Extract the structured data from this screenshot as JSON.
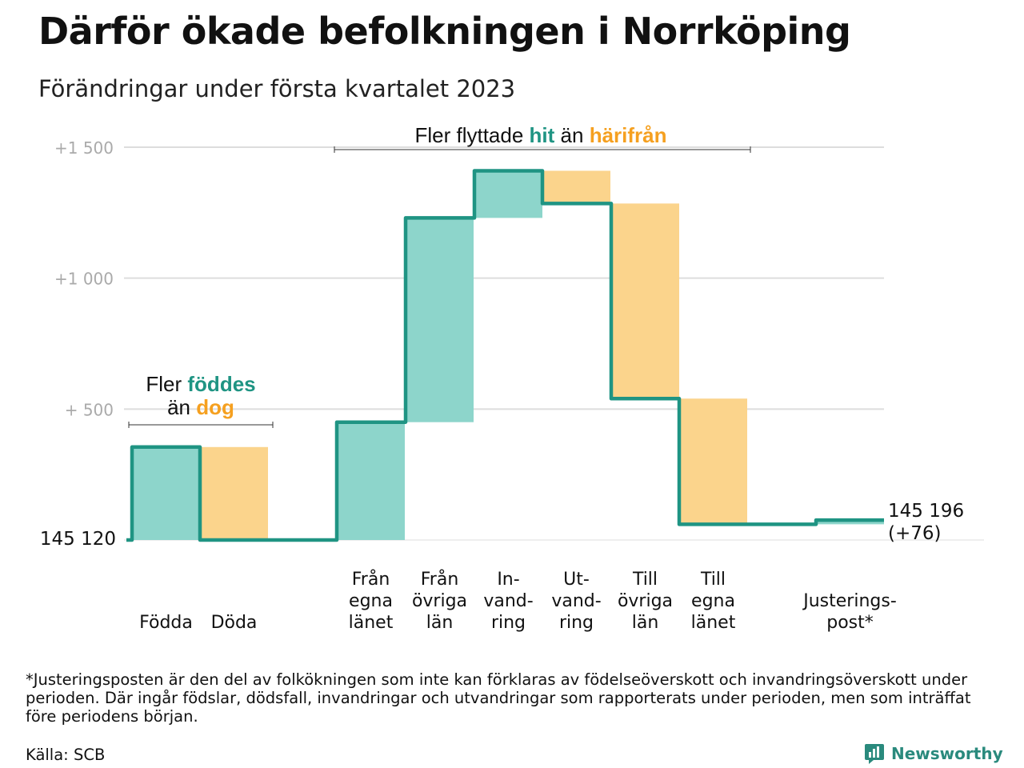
{
  "header": {
    "title": "Därför ökade befolkningen i Norrköping",
    "subtitle": "Förändringar under första kvartalet 2023"
  },
  "colors": {
    "inflow": "#8dd5cb",
    "outflow": "#fbd48c",
    "line": "#1f9483",
    "accent_orange": "#f5a020",
    "grid": "#dddddd",
    "tick": "#aaaaaa"
  },
  "chart_data": {
    "type": "waterfall",
    "start_value": 145120,
    "start_label": "145 120",
    "end_label_line1": "145 196",
    "end_label_line2": "(+76)",
    "y_ticks": [
      {
        "value": 500,
        "label": "+ 500"
      },
      {
        "value": 1000,
        "label": "+1 000"
      },
      {
        "value": 1500,
        "label": "+1 500"
      }
    ],
    "ylim": [
      0,
      1500
    ],
    "steps": [
      {
        "label": [
          "Födda"
        ],
        "delta": 355,
        "kind": "inflow"
      },
      {
        "label": [
          "Döda"
        ],
        "delta": -355,
        "kind": "outflow"
      },
      {
        "label": [
          "Från",
          "egna",
          "länet"
        ],
        "delta": 450,
        "kind": "inflow"
      },
      {
        "label": [
          "Från",
          "övriga",
          "län"
        ],
        "delta": 780,
        "kind": "inflow"
      },
      {
        "label": [
          "In-",
          "vand-",
          "ring"
        ],
        "delta": 180,
        "kind": "inflow"
      },
      {
        "label": [
          "Ut-",
          "vand-",
          "ring"
        ],
        "delta": -125,
        "kind": "outflow"
      },
      {
        "label": [
          "Till",
          "övriga",
          "län"
        ],
        "delta": -745,
        "kind": "outflow"
      },
      {
        "label": [
          "Till",
          "egna",
          "länet"
        ],
        "delta": -480,
        "kind": "outflow"
      },
      {
        "label": [
          "Justerings-",
          "post*"
        ],
        "delta": 16,
        "kind": "inflow"
      }
    ],
    "annotations": {
      "births_line1": "Fler",
      "births_word1": "föddes",
      "births_line2_pre": "än",
      "births_word2": "dog",
      "migration_pre": "Fler flyttade",
      "migration_word1": "hit",
      "migration_mid": "än",
      "migration_word2": "härifrån"
    }
  },
  "footnote": "*Justeringsposten är den del av folkökningen som inte kan förklaras av födelseöverskott och invandringsöverskott under perioden. Där ingår födslar, dödsfall, invandringar och utvandringar som rapporterats under perioden, men som inträffat före periodens början.",
  "source": "Källa: SCB",
  "brand": {
    "name": "Newsworthy",
    "icon": "bar-chart-icon"
  }
}
